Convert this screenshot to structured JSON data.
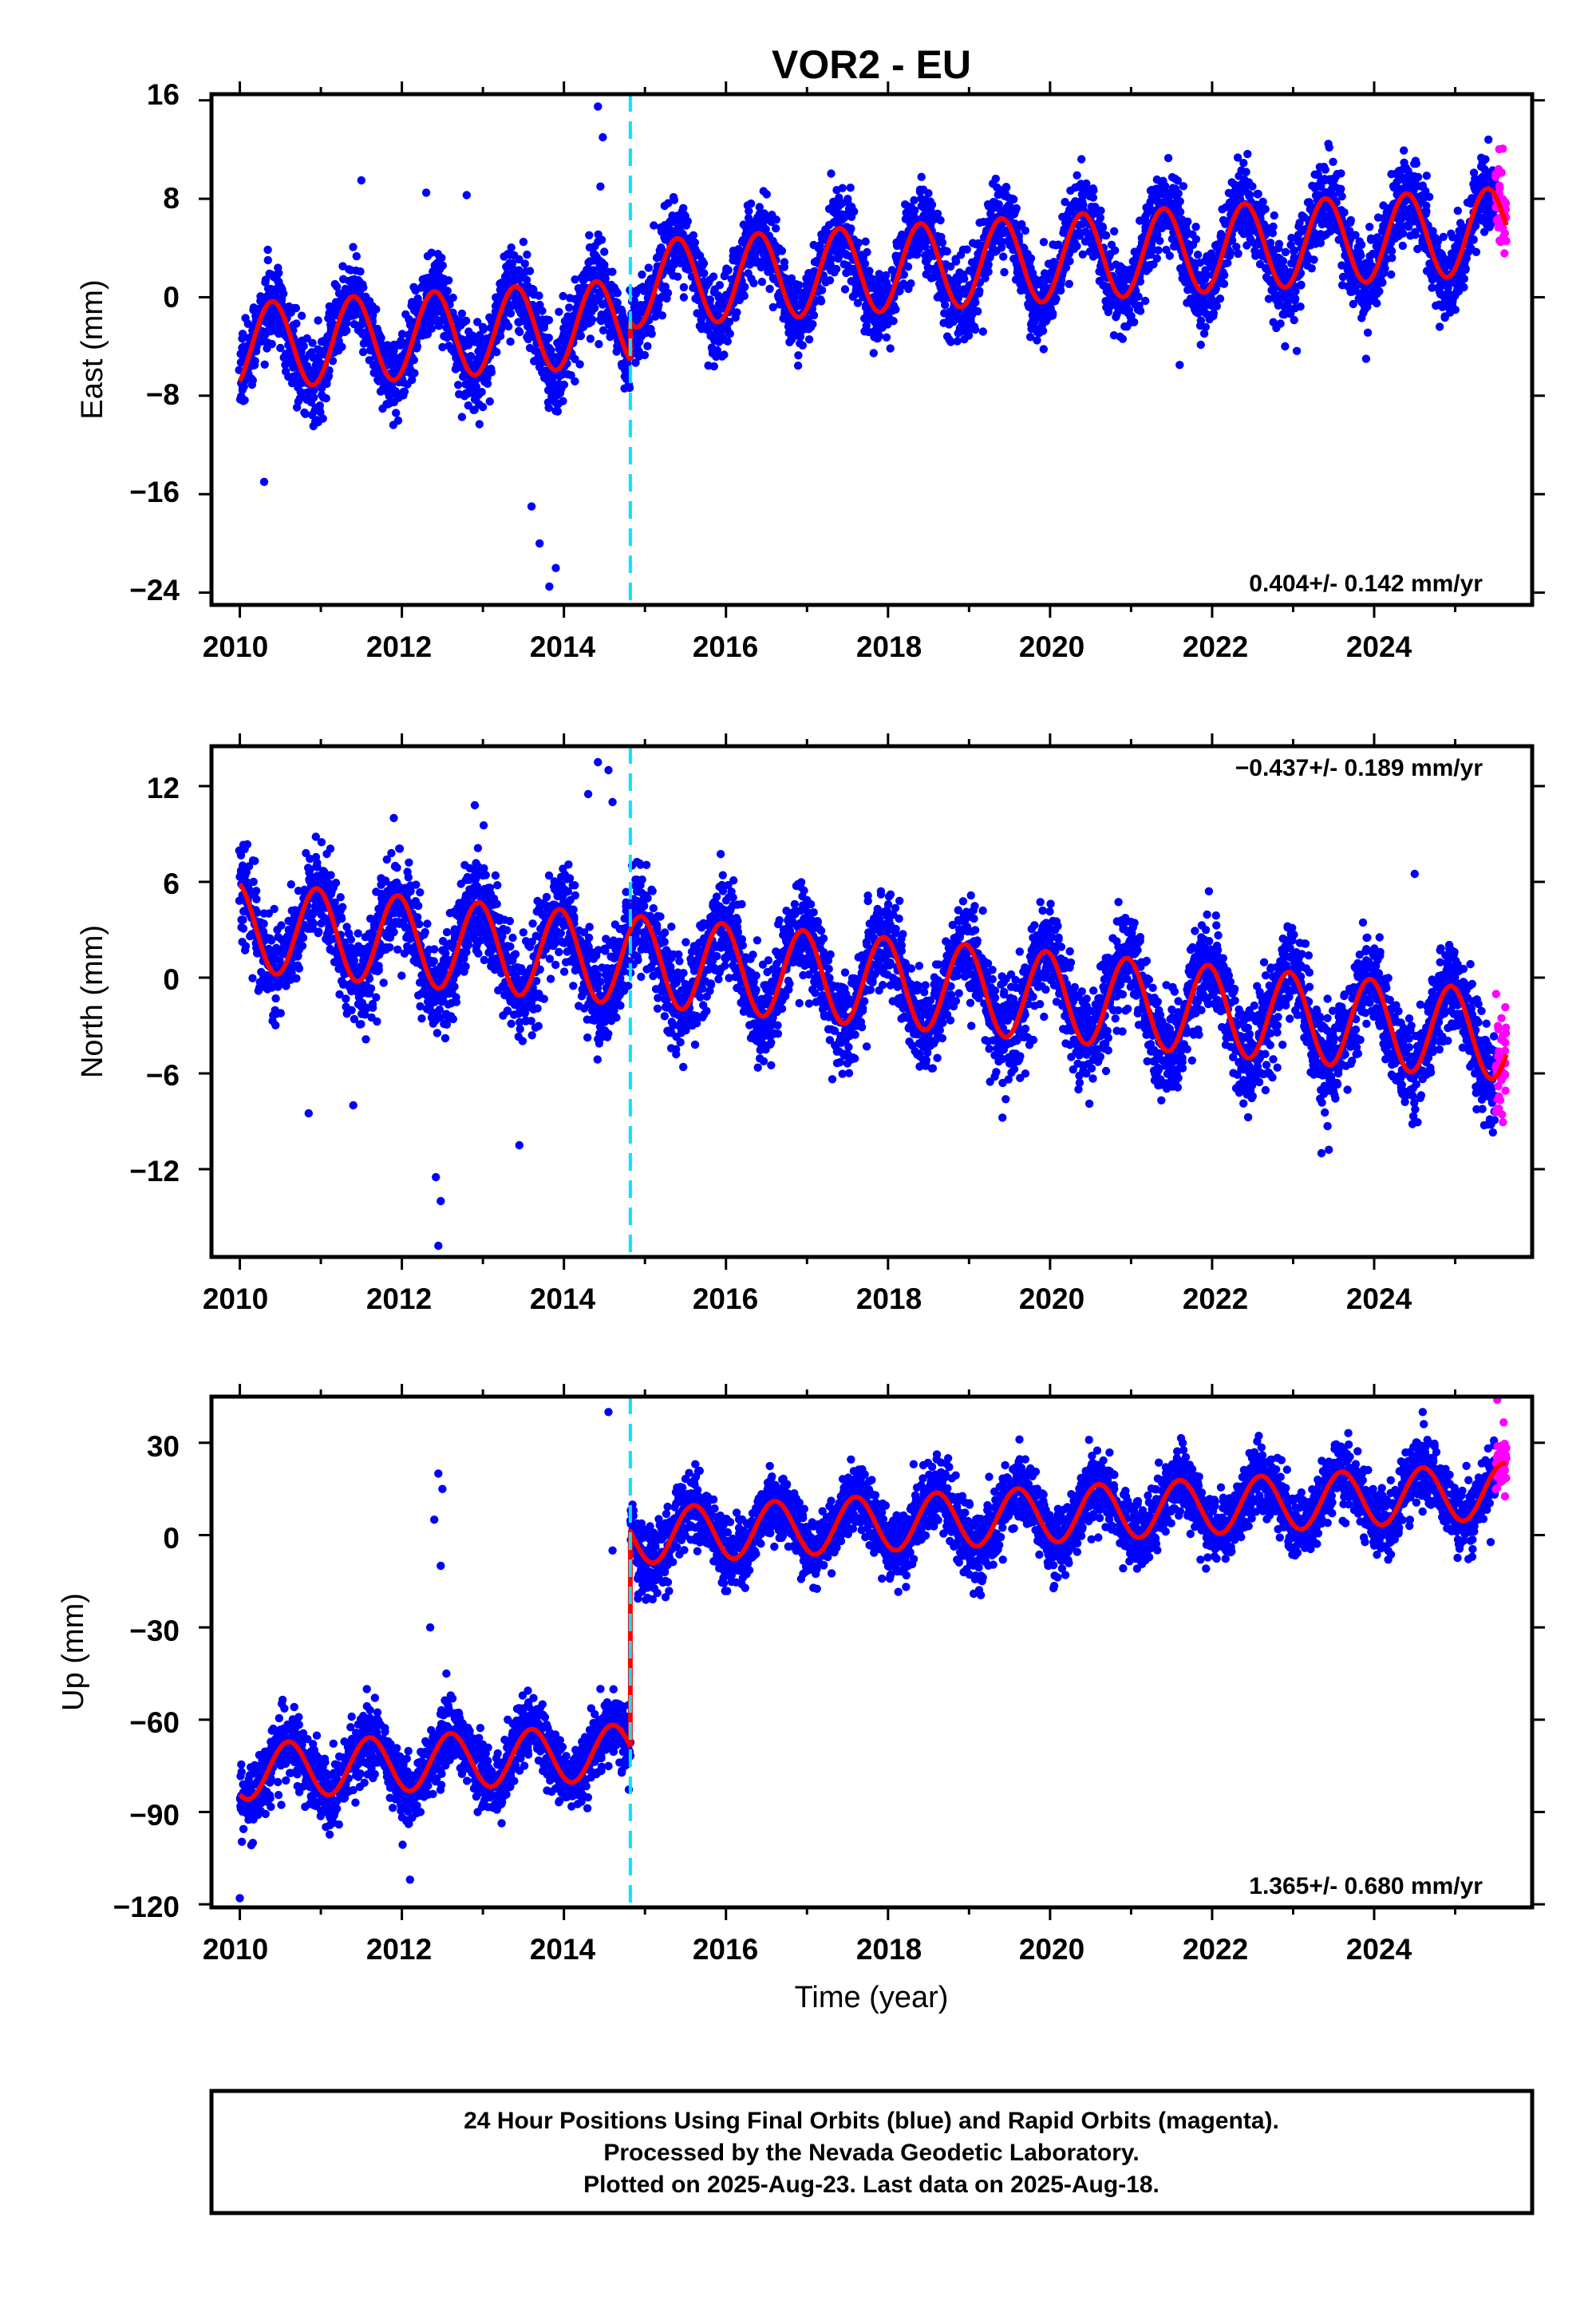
{
  "colors": {
    "final_orbits": "#0000ff",
    "rapid_orbits": "#ff00ff",
    "model": "#ff0000",
    "equipment_change": "#00e5ff",
    "frame": "#000000"
  },
  "chart_data": [
    {
      "type": "scatter",
      "panel": "east",
      "title": "VOR2 - EU",
      "ylabel": "East (mm)",
      "xlabel": "",
      "xlim": [
        2009.65,
        2025.95
      ],
      "ylim": [
        -25,
        16.5
      ],
      "xticks": [
        "2010",
        "2012",
        "2014",
        "2016",
        "2018",
        "2020",
        "2022",
        "2024"
      ],
      "yticks": [
        "16",
        "8",
        "0",
        "-8",
        "-16",
        "-24"
      ],
      "rate_text": "0.404+/- 0.142 mm/yr",
      "rate_position": "bottom-right",
      "step_epoch": 2014.82,
      "series": [
        {
          "name": "Final Orbits (blue)",
          "start": 2010.0,
          "end": 2025.5,
          "y0": -4.0,
          "trend": 0.404,
          "amp": 3.5,
          "phase_peak": 0.4,
          "step": 3.1,
          "noise": 1.6
        },
        {
          "name": "Rapid Orbits (magenta)",
          "start": 2025.5,
          "end": 2025.63,
          "y0": -4.0,
          "trend": 0.404,
          "amp": 3.5,
          "phase_peak": 0.4,
          "step": 3.1,
          "noise": 1.6
        }
      ],
      "outliers": [
        [
          2014.42,
          15.5
        ],
        [
          2014.48,
          13.0
        ],
        [
          2014.45,
          9.0
        ],
        [
          2013.7,
          -20.0
        ],
        [
          2013.82,
          -23.5
        ],
        [
          2013.9,
          -22.0
        ],
        [
          2013.6,
          -17.0
        ],
        [
          2010.3,
          -15.0
        ],
        [
          2011.5,
          9.5
        ],
        [
          2012.3,
          8.5
        ],
        [
          2012.8,
          8.3
        ],
        [
          2013.5,
          4.5
        ],
        [
          2023.9,
          -5.0
        ],
        [
          2021.6,
          -5.5
        ]
      ]
    },
    {
      "type": "scatter",
      "panel": "north",
      "title": "",
      "ylabel": "North (mm)",
      "xlabel": "",
      "xlim": [
        2009.65,
        2025.95
      ],
      "ylim": [
        -17.5,
        14.5
      ],
      "xticks": [
        "2010",
        "2012",
        "2014",
        "2016",
        "2018",
        "2020",
        "2022",
        "2024"
      ],
      "yticks": [
        "12",
        "6",
        "0",
        "-6",
        "-12"
      ],
      "rate_text": "-0.437+/- 0.189 mm/yr",
      "rate_position": "top-right",
      "step_epoch": 2014.82,
      "series": [
        {
          "name": "Final Orbits (blue)",
          "start": 2010.0,
          "end": 2025.5,
          "y0": 3.2,
          "trend": -0.437,
          "amp": 2.8,
          "phase_peak": 0.95,
          "step": 0.0,
          "noise": 1.5
        },
        {
          "name": "Rapid Orbits (magenta)",
          "start": 2025.5,
          "end": 2025.63,
          "y0": 3.2,
          "trend": -0.437,
          "amp": 2.8,
          "phase_peak": 0.95,
          "step": 0.0,
          "noise": 1.5
        }
      ],
      "outliers": [
        [
          2012.45,
          -16.8
        ],
        [
          2012.42,
          -12.5
        ],
        [
          2012.48,
          -14.0
        ],
        [
          2014.42,
          13.5
        ],
        [
          2014.55,
          13.0
        ],
        [
          2014.3,
          11.5
        ],
        [
          2014.6,
          11.0
        ],
        [
          2012.9,
          10.8
        ],
        [
          2011.9,
          10.0
        ],
        [
          2013.45,
          -10.5
        ],
        [
          2010.85,
          -8.5
        ],
        [
          2011.4,
          -8.0
        ],
        [
          2023.35,
          -11.0
        ],
        [
          2024.5,
          6.5
        ],
        [
          2015.95,
          5.8
        ]
      ]
    },
    {
      "type": "scatter",
      "panel": "up",
      "title": "",
      "ylabel": "Up (mm)",
      "xlabel": "Time (year)",
      "xlim": [
        2009.65,
        2025.95
      ],
      "ylim": [
        -121,
        45
      ],
      "xticks": [
        "2010",
        "2012",
        "2014",
        "2016",
        "2018",
        "2020",
        "2022",
        "2024"
      ],
      "yticks": [
        "30",
        "0",
        "-30",
        "-60",
        "-90",
        "-120"
      ],
      "rate_text": "1.365+/- 0.680 mm/yr",
      "rate_position": "bottom-right",
      "step_epoch": 2014.82,
      "series": [
        {
          "name": "Final Orbits (blue)",
          "start": 2010.0,
          "end": 2025.5,
          "y0": -77.0,
          "trend": 1.365,
          "amp": 9.0,
          "phase_peak": 0.6,
          "step": 70.0,
          "noise": 5.5
        },
        {
          "name": "Rapid Orbits (magenta)",
          "start": 2025.5,
          "end": 2025.63,
          "y0": -77.0,
          "trend": 1.365,
          "amp": 9.0,
          "phase_peak": 0.6,
          "step": 70.0,
          "noise": 5.5
        }
      ],
      "outliers": [
        [
          2012.45,
          20.0
        ],
        [
          2012.5,
          15.0
        ],
        [
          2012.4,
          5.0
        ],
        [
          2012.48,
          -10.0
        ],
        [
          2012.35,
          -30.0
        ],
        [
          2012.55,
          -45.0
        ],
        [
          2014.55,
          40.0
        ],
        [
          2014.6,
          -5.0
        ],
        [
          2014.45,
          -50.0
        ],
        [
          2010.0,
          -118.0
        ],
        [
          2012.1,
          -112.0
        ],
        [
          2024.6,
          40.0
        ],
        [
          2025.52,
          44.0
        ]
      ]
    }
  ],
  "caption": {
    "line1": "24 Hour Positions Using Final Orbits (blue) and Rapid Orbits (magenta).",
    "line2": "Processed by the Nevada Geodetic Laboratory.",
    "line3": "Plotted on 2025-Aug-23. Last data on 2025-Aug-18."
  }
}
